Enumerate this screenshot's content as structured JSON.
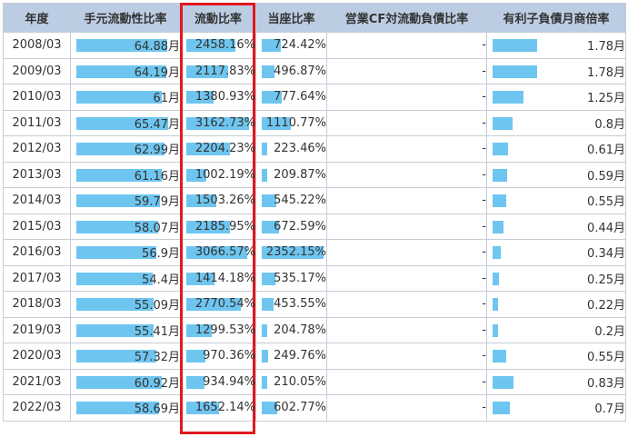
{
  "columns": [
    "年度",
    "手元流動性比率",
    "流動比率",
    "当座比率",
    "営業CF対流動負債比率",
    "有利子負債月商倍率"
  ],
  "chart_data": {
    "type": "table",
    "columns": [
      "年度",
      "手元流動性比率",
      "流動比率",
      "当座比率",
      "営業CF対流動負債比率",
      "有利子負債月商倍率"
    ],
    "rows": [
      {
        "year": "2008/03",
        "liquidity": "64.88月",
        "current": "2458.16%",
        "quick": "724.42%",
        "cf": "-",
        "debt": "1.78月"
      },
      {
        "year": "2009/03",
        "liquidity": "64.19月",
        "current": "2117.83%",
        "quick": "496.87%",
        "cf": "-",
        "debt": "1.78月"
      },
      {
        "year": "2010/03",
        "liquidity": "61月",
        "current": "1380.93%",
        "quick": "777.64%",
        "cf": "-",
        "debt": "1.25月"
      },
      {
        "year": "2011/03",
        "liquidity": "65.47月",
        "current": "3162.73%",
        "quick": "1110.77%",
        "cf": "-",
        "debt": "0.8月"
      },
      {
        "year": "2012/03",
        "liquidity": "62.99月",
        "current": "2204.23%",
        "quick": "223.46%",
        "cf": "-",
        "debt": "0.61月"
      },
      {
        "year": "2013/03",
        "liquidity": "61.16月",
        "current": "1002.19%",
        "quick": "209.87%",
        "cf": "-",
        "debt": "0.59月"
      },
      {
        "year": "2014/03",
        "liquidity": "59.79月",
        "current": "1503.26%",
        "quick": "545.22%",
        "cf": "-",
        "debt": "0.55月"
      },
      {
        "year": "2015/03",
        "liquidity": "58.07月",
        "current": "2185.95%",
        "quick": "672.59%",
        "cf": "-",
        "debt": "0.44月"
      },
      {
        "year": "2016/03",
        "liquidity": "56.9月",
        "current": "3066.57%",
        "quick": "2352.15%",
        "cf": "-",
        "debt": "0.34月"
      },
      {
        "year": "2017/03",
        "liquidity": "54.4月",
        "current": "1414.18%",
        "quick": "535.17%",
        "cf": "-",
        "debt": "0.25月"
      },
      {
        "year": "2018/03",
        "liquidity": "55.09月",
        "current": "2770.54%",
        "quick": "453.55%",
        "cf": "-",
        "debt": "0.22月"
      },
      {
        "year": "2019/03",
        "liquidity": "55.41月",
        "current": "1299.53%",
        "quick": "204.78%",
        "cf": "-",
        "debt": "0.2月"
      },
      {
        "year": "2020/03",
        "liquidity": "57.32月",
        "current": "970.36%",
        "quick": "249.76%",
        "cf": "-",
        "debt": "0.55月"
      },
      {
        "year": "2021/03",
        "liquidity": "60.92月",
        "current": "934.94%",
        "quick": "210.05%",
        "cf": "-",
        "debt": "0.83月"
      },
      {
        "year": "2022/03",
        "liquidity": "58.69月",
        "current": "1652.14%",
        "quick": "602.77%",
        "cf": "-",
        "debt": "0.7月"
      }
    ],
    "bar_values": {
      "liquidity": [
        64.88,
        64.19,
        61,
        65.47,
        62.99,
        61.16,
        59.79,
        58.07,
        56.9,
        54.4,
        55.09,
        55.41,
        57.32,
        60.92,
        58.69
      ],
      "current": [
        2458.16,
        2117.83,
        1380.93,
        3162.73,
        2204.23,
        1002.19,
        1503.26,
        2185.95,
        3066.57,
        1414.18,
        2770.54,
        1299.53,
        970.36,
        934.94,
        1652.14
      ],
      "quick": [
        724.42,
        496.87,
        777.64,
        1110.77,
        223.46,
        209.87,
        545.22,
        672.59,
        2352.15,
        535.17,
        453.55,
        204.78,
        249.76,
        210.05,
        602.77
      ],
      "debt": [
        1.78,
        1.78,
        1.25,
        0.8,
        0.61,
        0.59,
        0.55,
        0.44,
        0.34,
        0.25,
        0.22,
        0.2,
        0.55,
        0.83,
        0.7
      ]
    }
  },
  "colors": {
    "header_bg": "#bccde3",
    "bar": "#6ec6f0",
    "highlight": "#e0191e"
  }
}
